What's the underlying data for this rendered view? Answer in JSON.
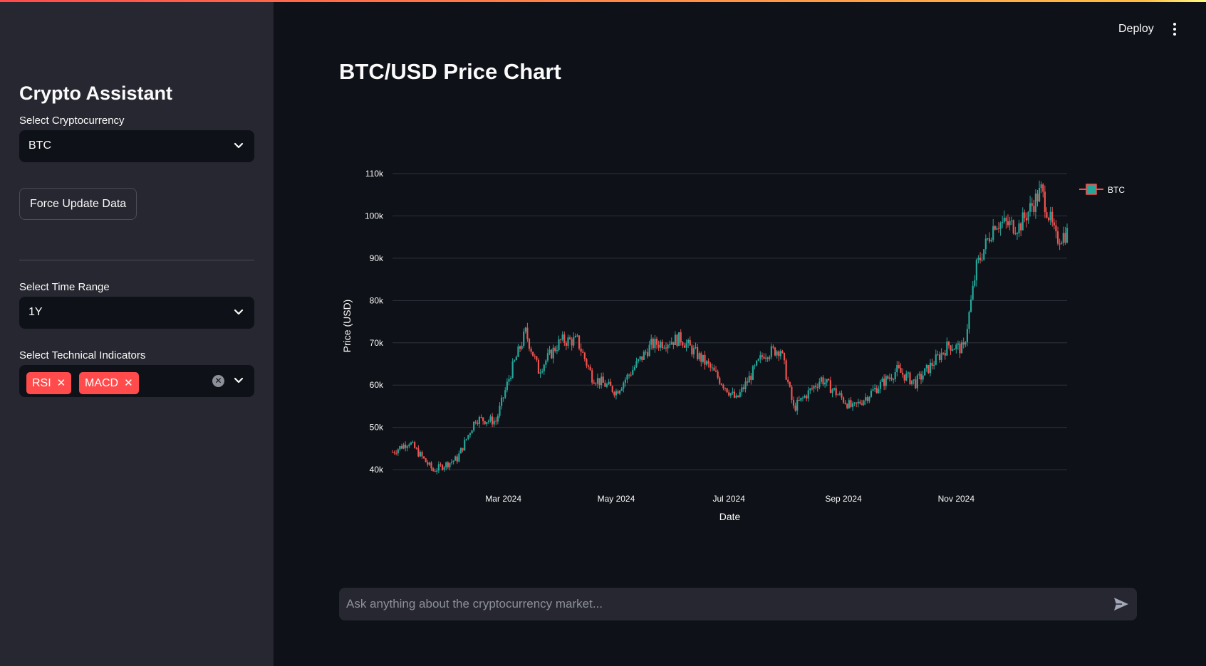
{
  "sidebar": {
    "title": "Crypto Assistant",
    "crypto_label": "Select Cryptocurrency",
    "crypto_value": "BTC",
    "force_update_label": "Force Update Data",
    "time_range_label": "Select Time Range",
    "time_range_value": "1Y",
    "indicators_label": "Select Technical Indicators",
    "indicators": [
      "RSI",
      "MACD"
    ]
  },
  "header": {
    "deploy_label": "Deploy"
  },
  "main": {
    "title": "BTC/USD Price Chart"
  },
  "chat": {
    "placeholder": "Ask anything about the cryptocurrency market..."
  },
  "colors": {
    "up": "#26a69a",
    "down": "#ef5350",
    "accent": "#ff4b4b"
  },
  "chart_data": {
    "type": "candlestick",
    "title": "",
    "xlabel": "Date",
    "ylabel": "Price (USD)",
    "legend": [
      "BTC"
    ],
    "legend_position": "top-right",
    "ylim": [
      37000,
      111000
    ],
    "yticks": [
      40000,
      50000,
      60000,
      70000,
      80000,
      90000,
      100000,
      110000
    ],
    "ytick_labels": [
      "40k",
      "50k",
      "60k",
      "70k",
      "80k",
      "90k",
      "100k",
      "110k"
    ],
    "xticks": [
      "2024-03-01",
      "2024-05-01",
      "2024-07-01",
      "2024-09-01",
      "2024-11-01"
    ],
    "xtick_labels": [
      "Mar 2024",
      "May 2024",
      "Jul 2024",
      "Sep 2024",
      "Nov 2024"
    ],
    "x_range": [
      "2024-01-01",
      "2024-12-31"
    ],
    "close_keypoints": [
      {
        "date": "2024-01-01",
        "close": 44200
      },
      {
        "date": "2024-01-10",
        "close": 46600
      },
      {
        "date": "2024-01-23",
        "close": 39800
      },
      {
        "date": "2024-02-05",
        "close": 42600
      },
      {
        "date": "2024-02-15",
        "close": 52000
      },
      {
        "date": "2024-02-26",
        "close": 51500
      },
      {
        "date": "2024-03-05",
        "close": 63000
      },
      {
        "date": "2024-03-13",
        "close": 72500
      },
      {
        "date": "2024-03-20",
        "close": 63500
      },
      {
        "date": "2024-04-01",
        "close": 70500
      },
      {
        "date": "2024-04-10",
        "close": 70500
      },
      {
        "date": "2024-04-18",
        "close": 62000
      },
      {
        "date": "2024-05-01",
        "close": 58500
      },
      {
        "date": "2024-05-20",
        "close": 69500
      },
      {
        "date": "2024-06-05",
        "close": 71000
      },
      {
        "date": "2024-06-20",
        "close": 64500
      },
      {
        "date": "2024-07-05",
        "close": 56500
      },
      {
        "date": "2024-07-20",
        "close": 67500
      },
      {
        "date": "2024-07-29",
        "close": 68500
      },
      {
        "date": "2024-08-05",
        "close": 54500
      },
      {
        "date": "2024-08-20",
        "close": 61500
      },
      {
        "date": "2024-09-06",
        "close": 54500
      },
      {
        "date": "2024-09-30",
        "close": 63500
      },
      {
        "date": "2024-10-10",
        "close": 60500
      },
      {
        "date": "2024-10-28",
        "close": 69500
      },
      {
        "date": "2024-11-05",
        "close": 68500
      },
      {
        "date": "2024-11-12",
        "close": 88000
      },
      {
        "date": "2024-11-22",
        "close": 98500
      },
      {
        "date": "2024-12-05",
        "close": 97500
      },
      {
        "date": "2024-12-17",
        "close": 106000
      },
      {
        "date": "2024-12-25",
        "close": 94500
      },
      {
        "date": "2024-12-31",
        "close": 96000
      }
    ]
  }
}
